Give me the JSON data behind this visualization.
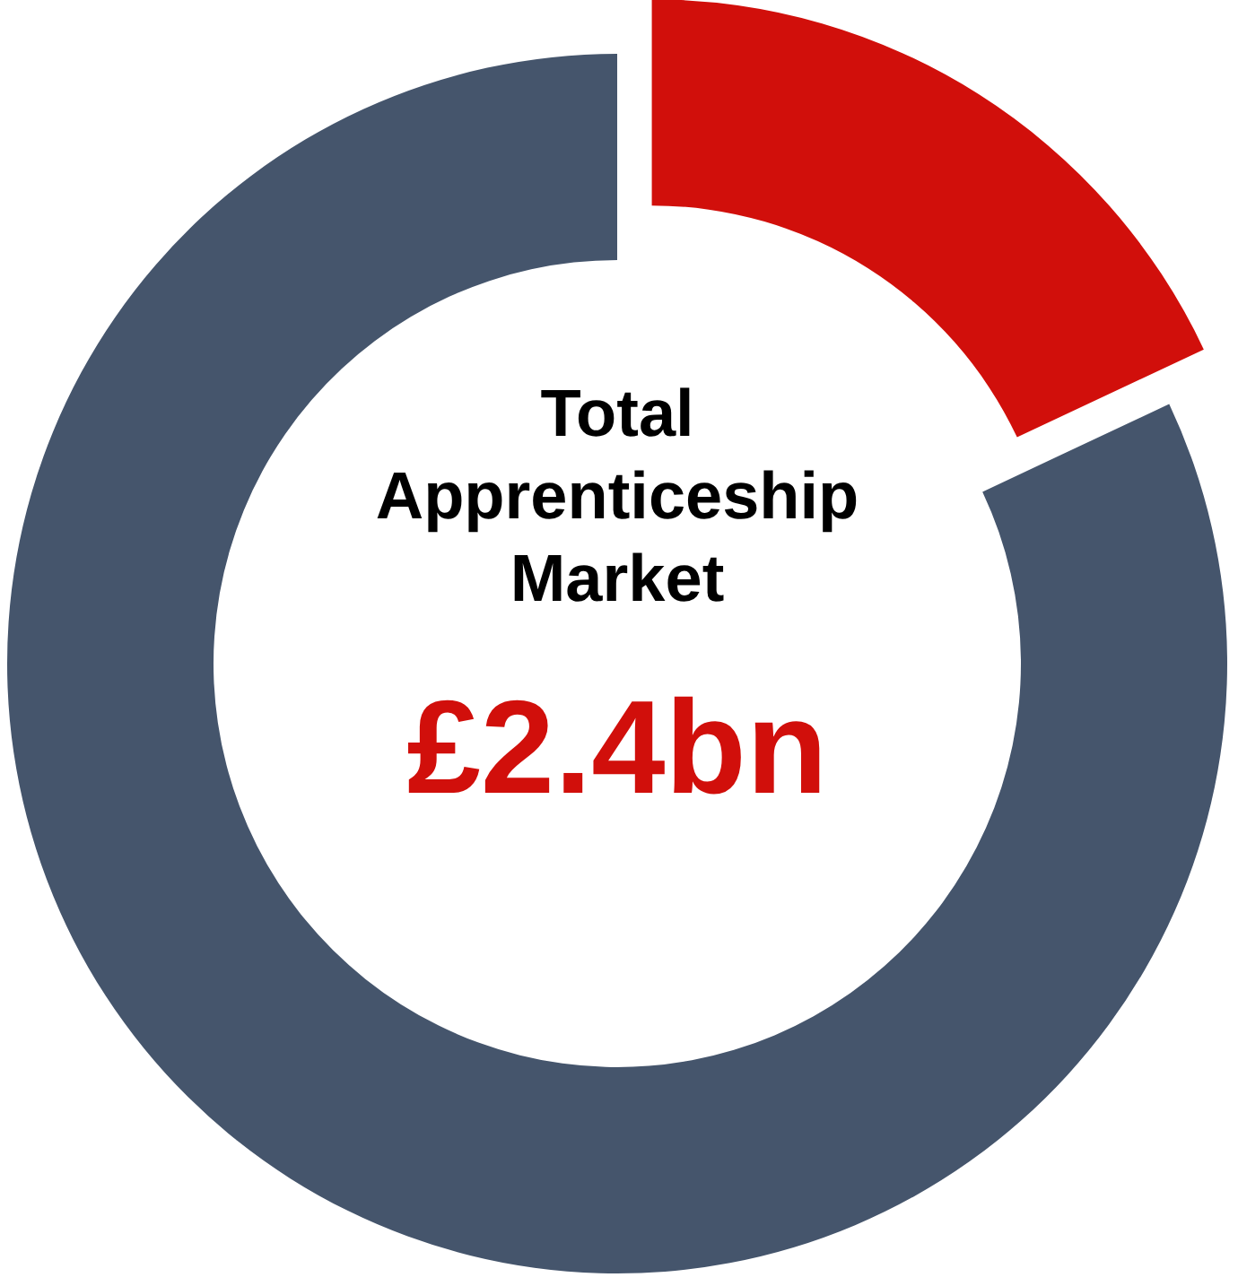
{
  "chart_data": {
    "type": "donut",
    "title": "Total Apprenticeship Market",
    "subtitle": "£2.4bn",
    "categories": [
      null,
      null
    ],
    "values": [
      18,
      82
    ],
    "colors": [
      "#d10f0b",
      "#45556c"
    ]
  }
}
